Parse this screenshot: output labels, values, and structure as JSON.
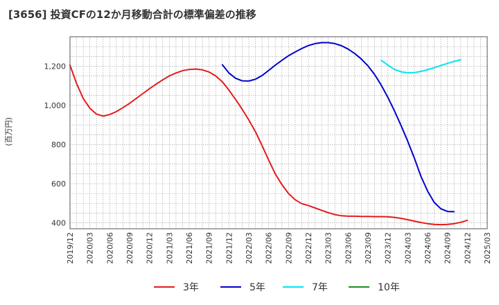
{
  "chart_data": {
    "type": "line",
    "title": "[3656]  投資CFの12か月移動合計の標準偏差の推移",
    "ylabel": "(百万円)",
    "xlabel": "",
    "ylim": [
      370,
      1350
    ],
    "yticks": [
      400,
      600,
      800,
      1000,
      1200
    ],
    "ytick_labels": [
      "400",
      "600",
      "800",
      "1,000",
      "1,200"
    ],
    "x_ticks": [
      "2019/12",
      "2020/03",
      "2020/06",
      "2020/09",
      "2020/12",
      "2021/03",
      "2021/06",
      "2021/09",
      "2021/12",
      "2022/03",
      "2022/06",
      "2022/09",
      "2022/12",
      "2023/03",
      "2023/06",
      "2023/09",
      "2023/12",
      "2024/03",
      "2024/06",
      "2024/09",
      "2024/12",
      "2025/03"
    ],
    "x_range": [
      "2019/12",
      "2025/03"
    ],
    "grid": true,
    "legend_position": "bottom",
    "series": [
      {
        "name": "3年",
        "color": "#e41a1c",
        "points": [
          [
            "2019/12",
            1205
          ],
          [
            "2020/01",
            1110
          ],
          [
            "2020/02",
            1035
          ],
          [
            "2020/03",
            985
          ],
          [
            "2020/04",
            955
          ],
          [
            "2020/05",
            945
          ],
          [
            "2020/06",
            953
          ],
          [
            "2020/07",
            968
          ],
          [
            "2020/08",
            988
          ],
          [
            "2020/09",
            1010
          ],
          [
            "2020/10",
            1035
          ],
          [
            "2020/11",
            1060
          ],
          [
            "2020/12",
            1085
          ],
          [
            "2021/01",
            1108
          ],
          [
            "2021/02",
            1130
          ],
          [
            "2021/03",
            1150
          ],
          [
            "2021/04",
            1165
          ],
          [
            "2021/05",
            1177
          ],
          [
            "2021/06",
            1183
          ],
          [
            "2021/07",
            1185
          ],
          [
            "2021/08",
            1181
          ],
          [
            "2021/09",
            1170
          ],
          [
            "2021/10",
            1150
          ],
          [
            "2021/11",
            1120
          ],
          [
            "2021/12",
            1078
          ],
          [
            "2022/01",
            1030
          ],
          [
            "2022/02",
            980
          ],
          [
            "2022/03",
            925
          ],
          [
            "2022/04",
            865
          ],
          [
            "2022/05",
            795
          ],
          [
            "2022/06",
            720
          ],
          [
            "2022/07",
            650
          ],
          [
            "2022/08",
            595
          ],
          [
            "2022/09",
            550
          ],
          [
            "2022/10",
            518
          ],
          [
            "2022/11",
            498
          ],
          [
            "2022/12",
            488
          ],
          [
            "2023/01",
            476
          ],
          [
            "2023/02",
            464
          ],
          [
            "2023/03",
            452
          ],
          [
            "2023/04",
            442
          ],
          [
            "2023/05",
            436
          ],
          [
            "2023/06",
            434
          ],
          [
            "2023/07",
            434
          ],
          [
            "2023/08",
            433
          ],
          [
            "2023/09",
            433
          ],
          [
            "2023/10",
            432
          ],
          [
            "2023/11",
            432
          ],
          [
            "2023/12",
            431
          ],
          [
            "2024/01",
            428
          ],
          [
            "2024/02",
            423
          ],
          [
            "2024/03",
            416
          ],
          [
            "2024/04",
            409
          ],
          [
            "2024/05",
            402
          ],
          [
            "2024/06",
            396
          ],
          [
            "2024/07",
            392
          ],
          [
            "2024/08",
            391
          ],
          [
            "2024/09",
            392
          ],
          [
            "2024/10",
            396
          ],
          [
            "2024/11",
            403
          ],
          [
            "2024/12",
            413
          ]
        ]
      },
      {
        "name": "5年",
        "color": "#0000cc",
        "points": [
          [
            "2021/11",
            1207
          ],
          [
            "2021/12",
            1165
          ],
          [
            "2022/01",
            1138
          ],
          [
            "2022/02",
            1125
          ],
          [
            "2022/03",
            1124
          ],
          [
            "2022/04",
            1133
          ],
          [
            "2022/05",
            1152
          ],
          [
            "2022/06",
            1178
          ],
          [
            "2022/07",
            1205
          ],
          [
            "2022/08",
            1230
          ],
          [
            "2022/09",
            1253
          ],
          [
            "2022/10",
            1272
          ],
          [
            "2022/11",
            1290
          ],
          [
            "2022/12",
            1305
          ],
          [
            "2023/01",
            1315
          ],
          [
            "2023/02",
            1320
          ],
          [
            "2023/03",
            1320
          ],
          [
            "2023/04",
            1315
          ],
          [
            "2023/05",
            1304
          ],
          [
            "2023/06",
            1287
          ],
          [
            "2023/07",
            1264
          ],
          [
            "2023/08",
            1236
          ],
          [
            "2023/09",
            1201
          ],
          [
            "2023/10",
            1157
          ],
          [
            "2023/11",
            1103
          ],
          [
            "2023/12",
            1040
          ],
          [
            "2024/01",
            971
          ],
          [
            "2024/02",
            896
          ],
          [
            "2024/03",
            817
          ],
          [
            "2024/04",
            730
          ],
          [
            "2024/05",
            637
          ],
          [
            "2024/06",
            562
          ],
          [
            "2024/07",
            504
          ],
          [
            "2024/08",
            472
          ],
          [
            "2024/09",
            458
          ],
          [
            "2024/10",
            457
          ]
        ]
      },
      {
        "name": "7年",
        "color": "#00e5ee",
        "points": [
          [
            "2023/11",
            1230
          ],
          [
            "2023/12",
            1205
          ],
          [
            "2024/01",
            1183
          ],
          [
            "2024/02",
            1171
          ],
          [
            "2024/03",
            1166
          ],
          [
            "2024/04",
            1167
          ],
          [
            "2024/05",
            1173
          ],
          [
            "2024/06",
            1182
          ],
          [
            "2024/07",
            1192
          ],
          [
            "2024/08",
            1203
          ],
          [
            "2024/09",
            1214
          ],
          [
            "2024/10",
            1224
          ],
          [
            "2024/11",
            1233
          ]
        ]
      },
      {
        "name": "10年",
        "color": "#228b22",
        "points": []
      }
    ]
  }
}
